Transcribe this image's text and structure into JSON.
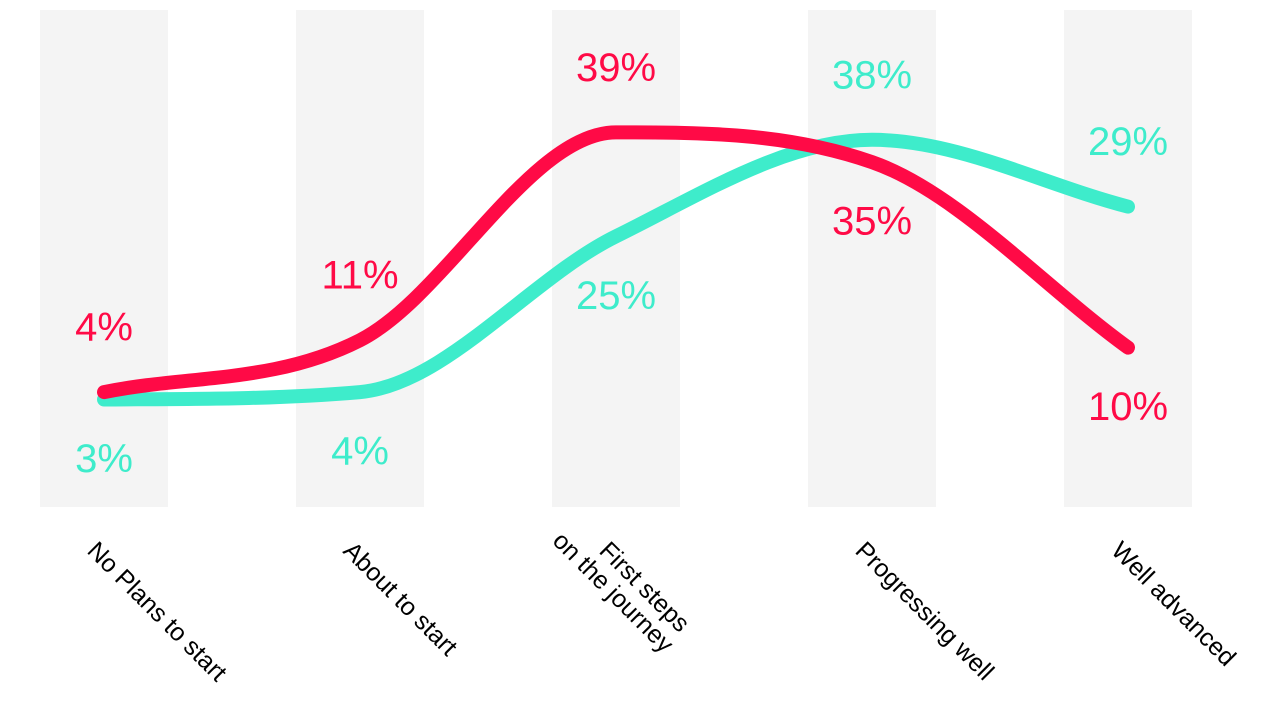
{
  "chart_data": {
    "type": "line",
    "categories": [
      "No Plans to start",
      "About to start",
      "First steps\non the journey",
      "Progressing well",
      "Well advanced"
    ],
    "series": [
      {
        "color": "#ff0a46",
        "values": [
          4,
          11,
          39,
          35,
          10
        ],
        "labels": [
          "4%",
          "11%",
          "39%",
          "35%",
          "10%"
        ],
        "label_positions": [
          "above",
          "above",
          "above",
          "below",
          "below"
        ]
      },
      {
        "color": "#3eeccb",
        "values": [
          3,
          4,
          25,
          38,
          29
        ],
        "labels": [
          "3%",
          "4%",
          "25%",
          "38%",
          "29%"
        ],
        "label_positions": [
          "below",
          "below",
          "below",
          "above",
          "above"
        ]
      }
    ],
    "y_unit": "%",
    "grid": false,
    "legend": "none",
    "axis_lines": false
  }
}
